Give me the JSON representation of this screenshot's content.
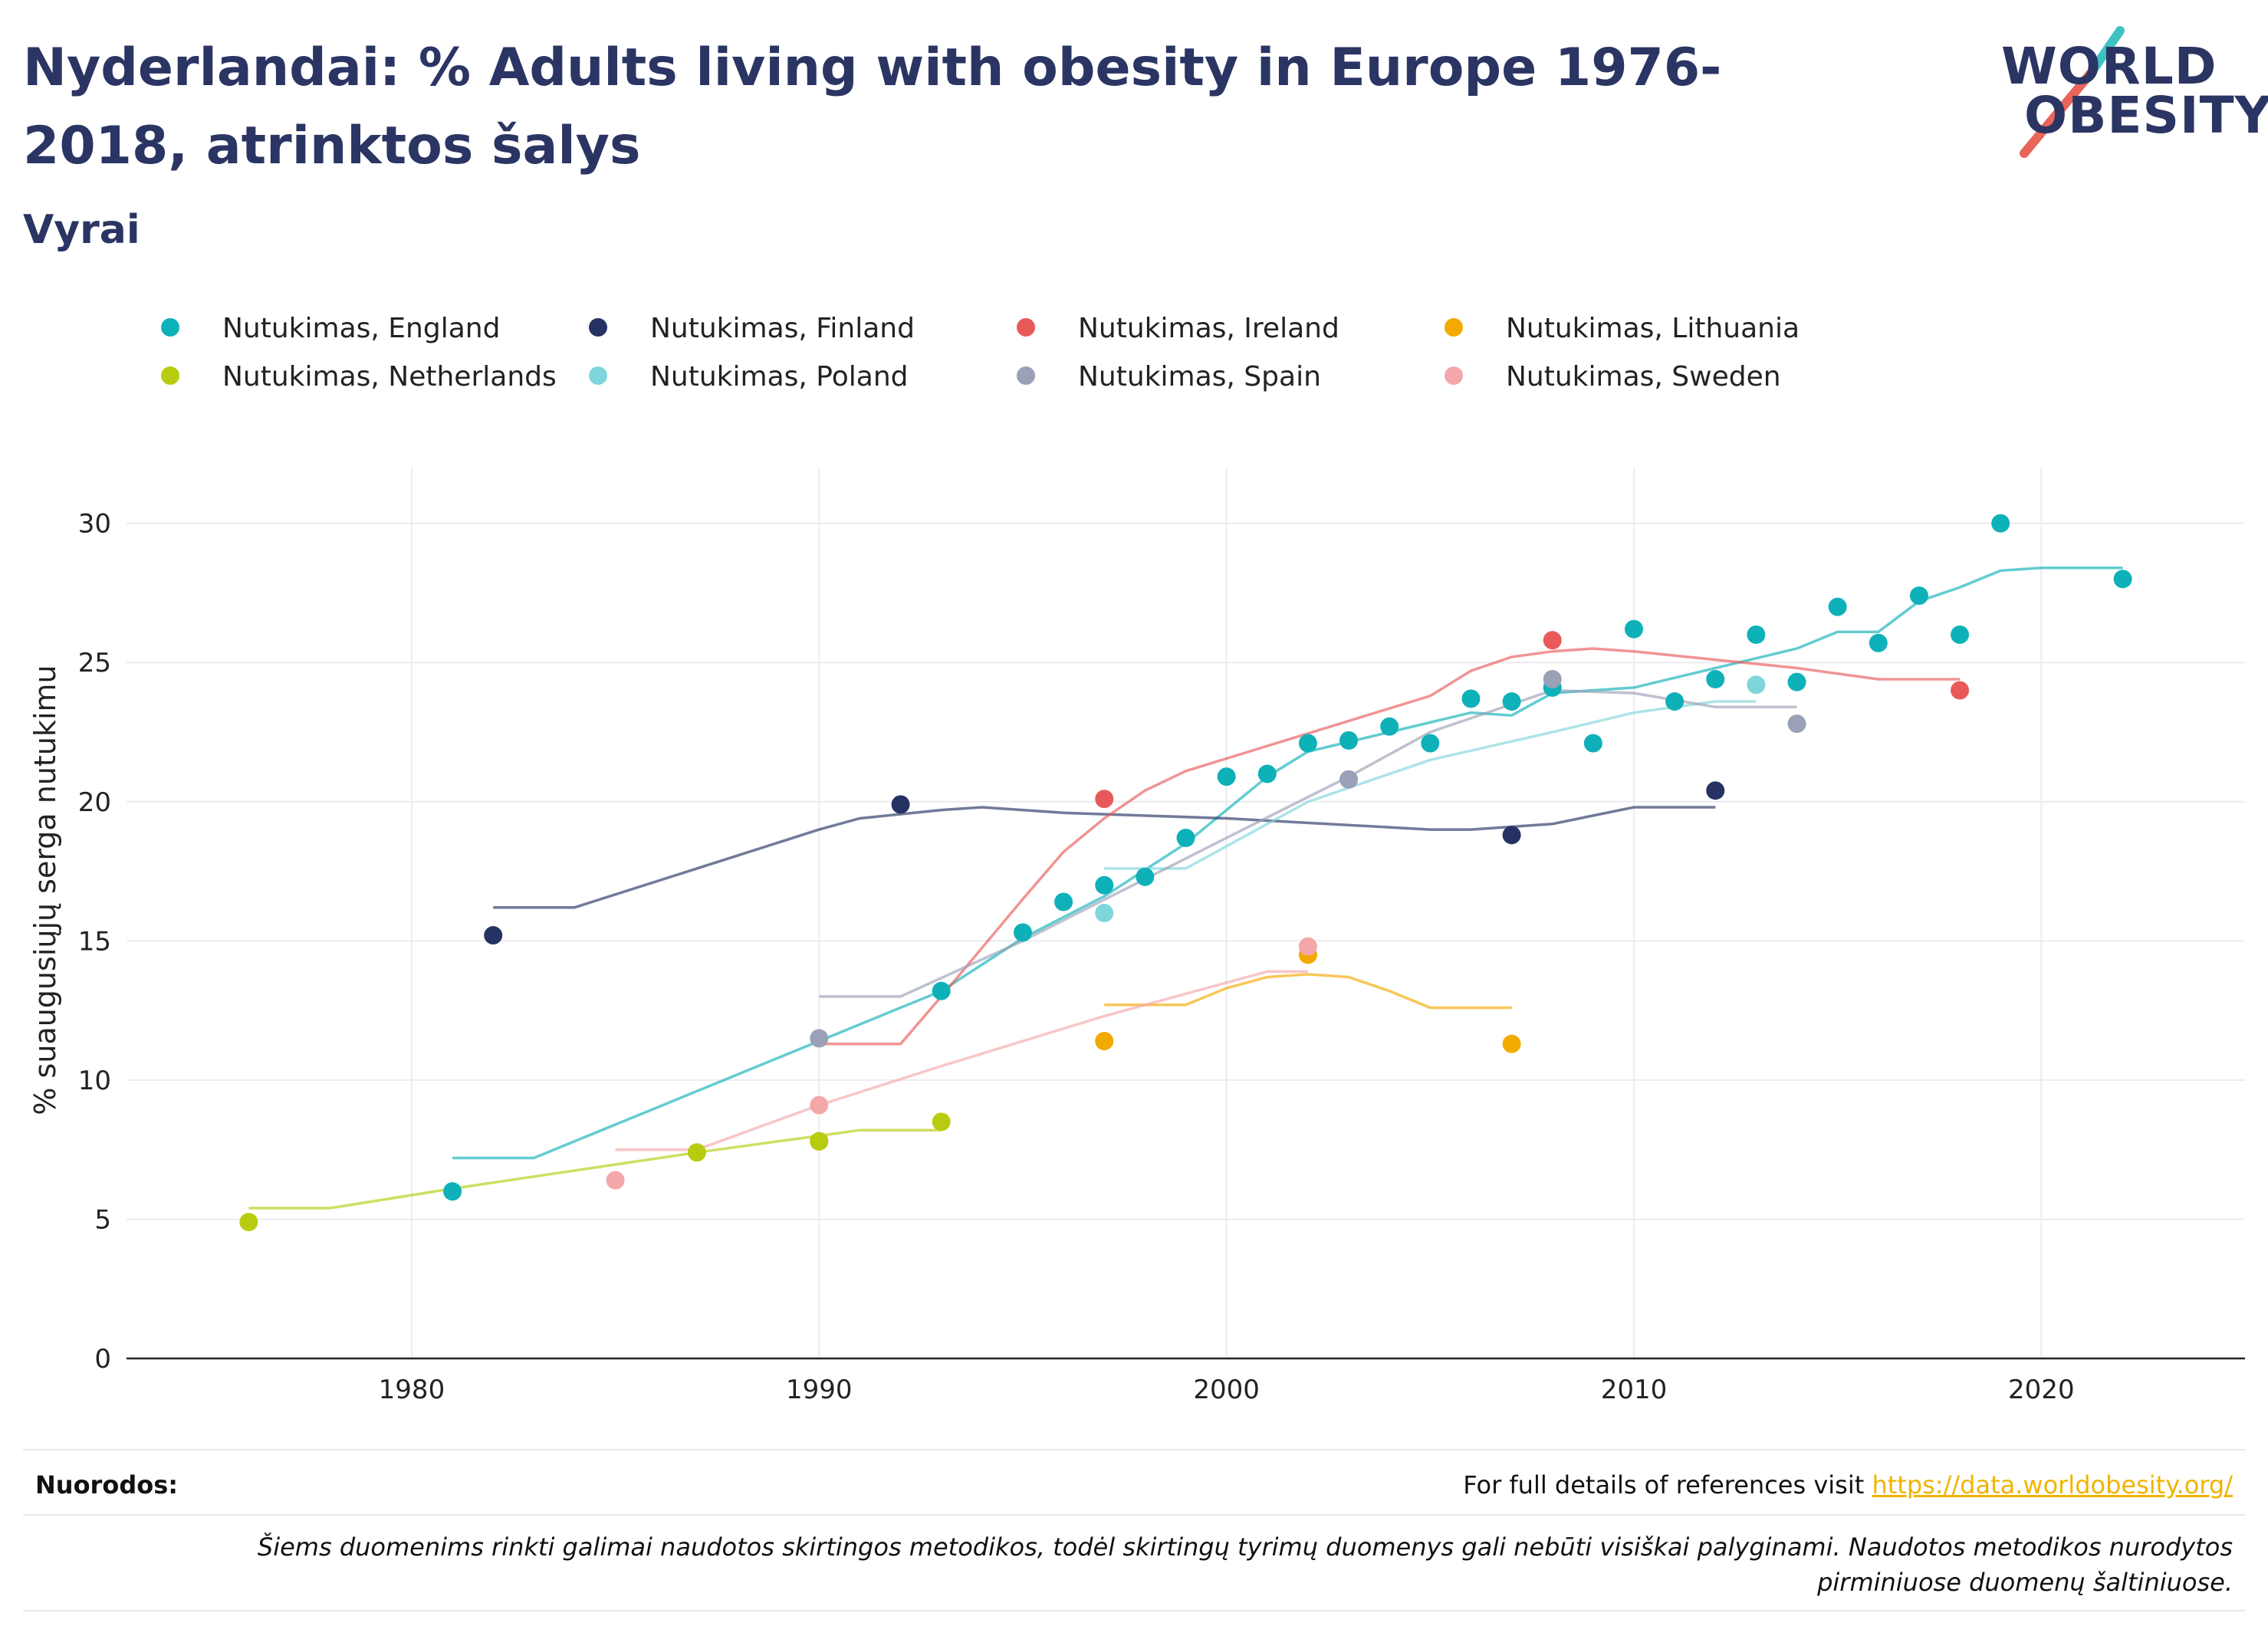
{
  "title": "Nyderlandai: % Adults living with obesity in Europe 1976-2018, atrinktos šalys",
  "subtitle": "Vyrai",
  "logo": {
    "line1": "WORLD",
    "line2": "OBESITY"
  },
  "footer": {
    "refs_label": "Nuorodos:",
    "refs_text": "For full details of references visit ",
    "refs_link": "https://data.worldobesity.org/",
    "disclaimer": "Šiems duomenims rinkti galimai naudotos skirtingos metodikos, todėl skirtingų tyrimų duomenys gali nebūti visiškai palyginami. Naudotos metodikos nurodytos pirminiuose duomenų šaltiniuose."
  },
  "chart_data": {
    "type": "scatter",
    "xlabel": "",
    "ylabel": "% suaugusiųjų serga nutukimu",
    "xlim": [
      1973,
      2025
    ],
    "ylim": [
      0,
      32
    ],
    "xticks": [
      1980,
      1990,
      2000,
      2010,
      2020
    ],
    "yticks": [
      0,
      5,
      10,
      15,
      20,
      25,
      30
    ],
    "grid": true,
    "legend_position": "top",
    "series": [
      {
        "name": "Nutukimas, England",
        "color": "#0fb1b8",
        "points": [
          [
            1981,
            6.0
          ],
          [
            1993,
            13.2
          ],
          [
            1995,
            15.3
          ],
          [
            1996,
            16.4
          ],
          [
            1997,
            17.0
          ],
          [
            1998,
            17.3
          ],
          [
            1999,
            18.7
          ],
          [
            2000,
            20.9
          ],
          [
            2001,
            21.0
          ],
          [
            2002,
            22.1
          ],
          [
            2003,
            22.2
          ],
          [
            2004,
            22.7
          ],
          [
            2005,
            22.1
          ],
          [
            2006,
            23.7
          ],
          [
            2007,
            23.6
          ],
          [
            2008,
            24.1
          ],
          [
            2009,
            22.1
          ],
          [
            2010,
            26.2
          ],
          [
            2011,
            23.6
          ],
          [
            2012,
            24.4
          ],
          [
            2013,
            26.0
          ],
          [
            2014,
            24.3
          ],
          [
            2015,
            27.0
          ],
          [
            2016,
            25.7
          ],
          [
            2017,
            27.4
          ],
          [
            2018,
            26.0
          ],
          [
            2019,
            30.0
          ],
          [
            2022,
            28.0
          ]
        ],
        "trend": [
          [
            1981,
            7.2
          ],
          [
            1983,
            7.2
          ],
          [
            1990,
            11.4
          ],
          [
            1993,
            13.2
          ],
          [
            1995,
            15.1
          ],
          [
            1997,
            16.6
          ],
          [
            1999,
            18.5
          ],
          [
            2001,
            20.9
          ],
          [
            2002,
            21.8
          ],
          [
            2004,
            22.5
          ],
          [
            2006,
            23.2
          ],
          [
            2007,
            23.1
          ],
          [
            2008,
            23.9
          ],
          [
            2010,
            24.1
          ],
          [
            2012,
            24.8
          ],
          [
            2014,
            25.5
          ],
          [
            2015,
            26.1
          ],
          [
            2016,
            26.1
          ],
          [
            2017,
            27.2
          ],
          [
            2018,
            27.7
          ],
          [
            2019,
            28.3
          ],
          [
            2020,
            28.4
          ],
          [
            2022,
            28.4
          ]
        ]
      },
      {
        "name": "Nutukimas, Finland",
        "color": "#263263",
        "points": [
          [
            1982,
            15.2
          ],
          [
            1992,
            19.9
          ],
          [
            2007,
            18.8
          ],
          [
            2012,
            20.4
          ]
        ],
        "trend": [
          [
            1982,
            16.2
          ],
          [
            1984,
            16.2
          ],
          [
            1990,
            19.0
          ],
          [
            1991,
            19.4
          ],
          [
            1993,
            19.7
          ],
          [
            1994,
            19.8
          ],
          [
            1996,
            19.6
          ],
          [
            2000,
            19.4
          ],
          [
            2005,
            19.0
          ],
          [
            2006,
            19.0
          ],
          [
            2008,
            19.2
          ],
          [
            2009,
            19.5
          ],
          [
            2010,
            19.8
          ],
          [
            2012,
            19.8
          ]
        ]
      },
      {
        "name": "Nutukimas, Ireland",
        "color": "#e85a5a",
        "points": [
          [
            1990,
            7.8
          ],
          [
            1997,
            20.1
          ],
          [
            2008,
            25.8
          ],
          [
            2018,
            24.0
          ]
        ],
        "trend": [
          [
            1990,
            11.3
          ],
          [
            1992,
            11.3
          ],
          [
            1993,
            13.0
          ],
          [
            1995,
            16.5
          ],
          [
            1996,
            18.2
          ],
          [
            1997,
            19.4
          ],
          [
            1998,
            20.4
          ],
          [
            1999,
            21.1
          ],
          [
            2001,
            22.0
          ],
          [
            2003,
            22.9
          ],
          [
            2005,
            23.8
          ],
          [
            2006,
            24.7
          ],
          [
            2007,
            25.2
          ],
          [
            2008,
            25.4
          ],
          [
            2009,
            25.5
          ],
          [
            2010,
            25.4
          ],
          [
            2012,
            25.1
          ],
          [
            2014,
            24.8
          ],
          [
            2016,
            24.4
          ],
          [
            2018,
            24.4
          ]
        ]
      },
      {
        "name": "Nutukimas, Lithuania",
        "color": "#f2a900",
        "points": [
          [
            1997,
            11.4
          ],
          [
            2002,
            14.5
          ],
          [
            2007,
            11.3
          ]
        ],
        "trend": [
          [
            1997,
            12.7
          ],
          [
            1999,
            12.7
          ],
          [
            2000,
            13.3
          ],
          [
            2001,
            13.7
          ],
          [
            2002,
            13.8
          ],
          [
            2003,
            13.7
          ],
          [
            2004,
            13.2
          ],
          [
            2005,
            12.6
          ],
          [
            2007,
            12.6
          ]
        ]
      },
      {
        "name": "Nutukimas, Netherlands",
        "color": "#b7cc0e",
        "points": [
          [
            1976,
            4.9
          ],
          [
            1987,
            7.4
          ],
          [
            1990,
            7.8
          ],
          [
            1993,
            8.5
          ]
        ],
        "trend": [
          [
            1976,
            5.4
          ],
          [
            1978,
            5.4
          ],
          [
            1981,
            6.1
          ],
          [
            1987,
            7.4
          ],
          [
            1990,
            8.0
          ],
          [
            1991,
            8.2
          ],
          [
            1993,
            8.2
          ]
        ]
      },
      {
        "name": "Nutukimas, Poland",
        "color": "#7fd6da",
        "points": [
          [
            1997,
            16.0
          ],
          [
            2003,
            20.8
          ],
          [
            2013,
            24.2
          ]
        ],
        "trend": [
          [
            1997,
            17.6
          ],
          [
            1999,
            17.6
          ],
          [
            2002,
            20.0
          ],
          [
            2005,
            21.5
          ],
          [
            2008,
            22.5
          ],
          [
            2010,
            23.2
          ],
          [
            2012,
            23.6
          ],
          [
            2013,
            23.6
          ]
        ]
      },
      {
        "name": "Nutukimas, Spain",
        "color": "#9aa0b6",
        "points": [
          [
            1990,
            11.5
          ],
          [
            2003,
            20.8
          ],
          [
            2008,
            24.4
          ],
          [
            2014,
            22.8
          ]
        ],
        "trend": [
          [
            1990,
            13.0
          ],
          [
            1992,
            13.0
          ],
          [
            1995,
            15.0
          ],
          [
            2000,
            18.7
          ],
          [
            2003,
            20.9
          ],
          [
            2005,
            22.5
          ],
          [
            2008,
            24.0
          ],
          [
            2010,
            23.9
          ],
          [
            2012,
            23.4
          ],
          [
            2014,
            23.4
          ]
        ]
      },
      {
        "name": "Nutukimas, Sweden",
        "color": "#f4a7a9",
        "points": [
          [
            1985,
            6.4
          ],
          [
            1990,
            9.1
          ],
          [
            2002,
            14.8
          ]
        ],
        "trend": [
          [
            1985,
            7.5
          ],
          [
            1987,
            7.5
          ],
          [
            1990,
            9.1
          ],
          [
            1993,
            10.5
          ],
          [
            1997,
            12.3
          ],
          [
            2000,
            13.5
          ],
          [
            2001,
            13.9
          ],
          [
            2002,
            13.9
          ]
        ]
      }
    ]
  }
}
